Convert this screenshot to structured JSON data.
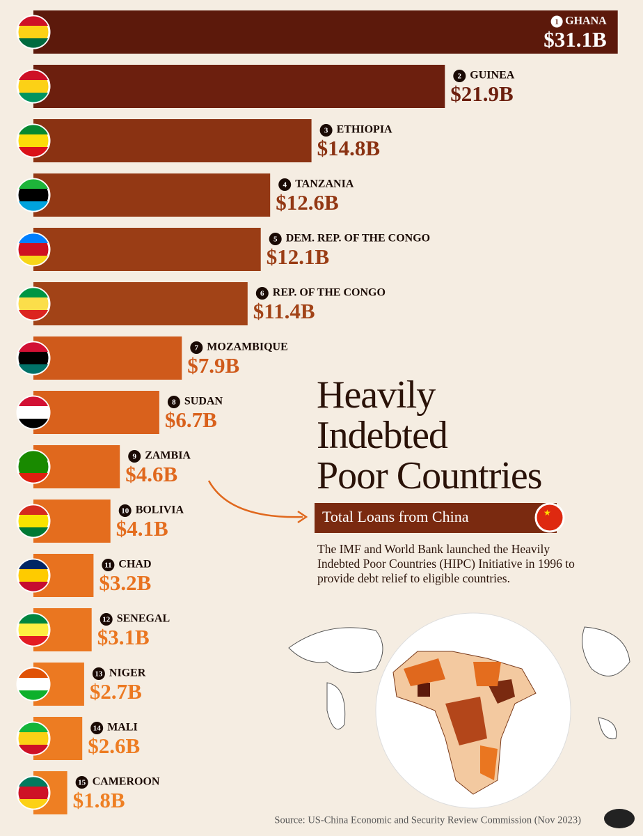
{
  "chart_data": {
    "type": "bar",
    "orientation": "horizontal",
    "title": "Heavily\nIndebted\nPoor Countries",
    "subtitle": "Total Loans from China",
    "description": "The IMF and World Bank launched the Heavily Indebted Poor Countries (HIPC) Initiative in 1996 to provide debt relief to eligible countries.",
    "source": "Source: US-China Economic and Security Review Commission (Nov 2023)",
    "ranks": [
      "1",
      "2",
      "3",
      "4",
      "5",
      "6",
      "7",
      "8",
      "9",
      "10",
      "11",
      "12",
      "13",
      "14",
      "15"
    ],
    "categories": [
      "GHANA",
      "GUINEA",
      "ETHIOPIA",
      "TANZANIA",
      "DEM. REP. OF THE CONGO",
      "REP. OF THE CONGO",
      "MOZAMBIQUE",
      "SUDAN",
      "ZAMBIA",
      "BOLIVIA",
      "CHAD",
      "SENEGAL",
      "NIGER",
      "MALI",
      "CAMEROON"
    ],
    "values": [
      31.1,
      21.9,
      14.8,
      12.6,
      12.1,
      11.4,
      7.9,
      6.7,
      4.6,
      4.1,
      3.2,
      3.1,
      2.7,
      2.6,
      1.8
    ],
    "value_labels": [
      "$31.1B",
      "$21.9B",
      "$14.8B",
      "$12.6B",
      "$12.1B",
      "$11.4B",
      "$7.9B",
      "$6.7B",
      "$4.6B",
      "$4.1B",
      "$3.2B",
      "$3.1B",
      "$2.7B",
      "$2.6B",
      "$1.8B"
    ],
    "colors": [
      "#5c190b",
      "#6c1f0e",
      "#8a3212",
      "#933814",
      "#9a3d15",
      "#a24317",
      "#cf5a1b",
      "#d9611c",
      "#e0681d",
      "#e46d1e",
      "#e8721f",
      "#ea7620",
      "#ec7921",
      "#ed7c22",
      "#ee7f23"
    ]
  }
}
